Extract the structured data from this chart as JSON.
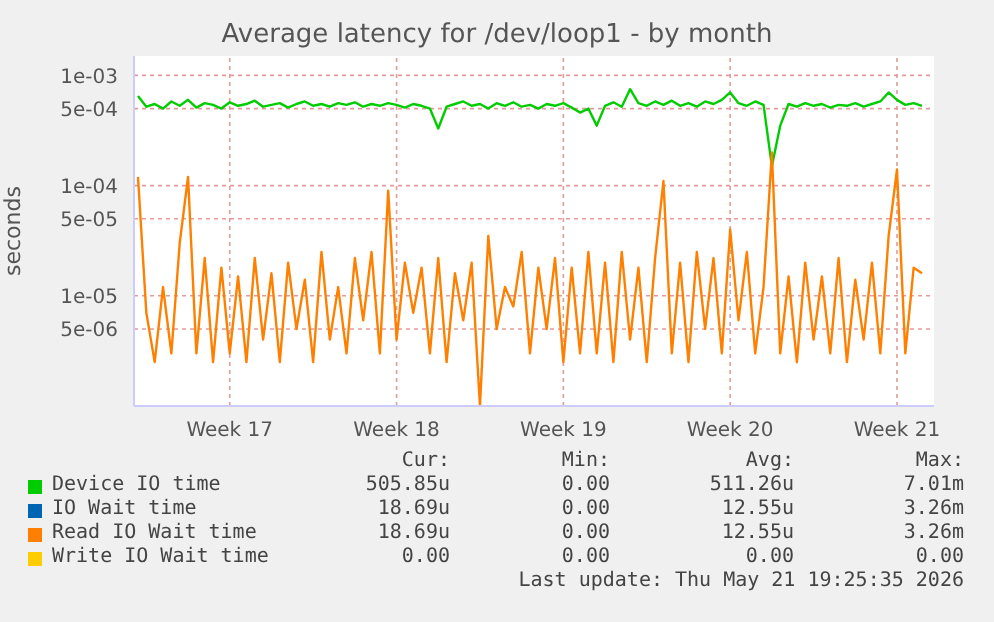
{
  "chart_data": {
    "type": "line",
    "title": "Average latency for /dev/loop1 - by month",
    "ylabel": "seconds",
    "log": "y",
    "grid": true,
    "legend": "bottom",
    "marker": "none",
    "line_style": "solid",
    "categories": [
      null,
      null,
      null,
      null,
      null,
      null,
      null,
      null,
      null,
      null,
      null,
      "Week 17",
      null,
      null,
      null,
      null,
      null,
      null,
      null,
      null,
      null,
      null,
      null,
      null,
      null,
      null,
      null,
      null,
      null,
      null,
      null,
      "Week 18",
      null,
      null,
      null,
      null,
      null,
      null,
      null,
      null,
      null,
      null,
      null,
      null,
      null,
      null,
      null,
      null,
      null,
      null,
      null,
      "Week 19",
      null,
      null,
      null,
      null,
      null,
      null,
      null,
      null,
      null,
      null,
      null,
      null,
      null,
      null,
      null,
      null,
      null,
      null,
      null,
      "Week 20",
      null,
      null,
      null,
      null,
      null,
      null,
      null,
      null,
      null,
      null,
      null,
      null,
      null,
      null,
      null,
      null,
      null,
      null,
      null,
      "Week 21",
      null,
      null,
      null
    ],
    "ylim": [
      1e-06,
      0.0015
    ],
    "yticks": [
      {
        "value": 5e-06,
        "label": "5e-06"
      },
      {
        "value": 1e-05,
        "label": "1e-05"
      },
      {
        "value": 5e-05,
        "label": "5e-05"
      },
      {
        "value": 0.0001,
        "label": "1e-04"
      },
      {
        "value": 0.0005,
        "label": "5e-04"
      },
      {
        "value": 0.001,
        "label": "1e-03"
      }
    ],
    "series": [
      {
        "name": "Device IO time",
        "color": "#00cc00",
        "values": [
          0.00065,
          0.00052,
          0.00055,
          0.0005,
          0.00058,
          0.00053,
          0.0006,
          0.00051,
          0.00056,
          0.00054,
          0.0005,
          0.00057,
          0.00053,
          0.00055,
          0.00059,
          0.00052,
          0.00054,
          0.00056,
          0.00051,
          0.00055,
          0.00058,
          0.00053,
          0.00055,
          0.00052,
          0.00056,
          0.00054,
          0.00057,
          0.00052,
          0.00055,
          0.00053,
          0.00056,
          0.00054,
          0.00051,
          0.00055,
          0.00053,
          0.0005,
          0.00033,
          0.00052,
          0.00055,
          0.00058,
          0.00053,
          0.00055,
          0.0005,
          0.00056,
          0.00053,
          0.00057,
          0.00052,
          0.00054,
          0.0005,
          0.00055,
          0.00053,
          0.00056,
          0.00051,
          0.00046,
          0.0005,
          0.00035,
          0.00053,
          0.00057,
          0.00052,
          0.00075,
          0.00056,
          0.00053,
          0.00058,
          0.00054,
          0.00059,
          0.00053,
          0.00056,
          0.00052,
          0.00058,
          0.00055,
          0.0006,
          0.0007,
          0.00056,
          0.00053,
          0.00058,
          0.00054,
          0.00015,
          0.00035,
          0.00055,
          0.00052,
          0.00056,
          0.00053,
          0.00055,
          0.00051,
          0.00054,
          0.00053,
          0.00056,
          0.00052,
          0.00055,
          0.00058,
          0.0007,
          0.0006,
          0.00054,
          0.00056,
          0.00053
        ]
      },
      {
        "name": "IO Wait time",
        "color": "#0066b3",
        "values": [
          null,
          null,
          null,
          null,
          null,
          null,
          null,
          null,
          null,
          null,
          null,
          null,
          null,
          null,
          null,
          null,
          null,
          null,
          null,
          null,
          null,
          null,
          null,
          null,
          null,
          null,
          null,
          null,
          null,
          null,
          null,
          null,
          null,
          null,
          null,
          null,
          null,
          null,
          null,
          null,
          null,
          null,
          null,
          null,
          null,
          null,
          null,
          null,
          null,
          null,
          null,
          null,
          null,
          null,
          null,
          null,
          null,
          null,
          null,
          null,
          null,
          null,
          null,
          null,
          null,
          null,
          null,
          null,
          null,
          null,
          null,
          null,
          null,
          null,
          null,
          null,
          null,
          null,
          null,
          null,
          null,
          null,
          null,
          null,
          null,
          null,
          null,
          null,
          null,
          null,
          null,
          null,
          null,
          null,
          null
        ]
      },
      {
        "name": "Read IO Wait time",
        "color": "#ff8000",
        "values": [
          0.00012,
          7e-06,
          2.5e-06,
          1.2e-05,
          3e-06,
          3e-05,
          0.00012,
          3e-06,
          2.2e-05,
          2.5e-06,
          1.8e-05,
          3e-06,
          1.5e-05,
          2.5e-06,
          2.2e-05,
          4e-06,
          1.6e-05,
          2.5e-06,
          2e-05,
          5e-06,
          1.4e-05,
          2.5e-06,
          2.5e-05,
          4e-06,
          1.2e-05,
          3e-06,
          2.2e-05,
          6e-06,
          2.5e-05,
          3e-06,
          9e-05,
          4e-06,
          2e-05,
          7e-06,
          1.8e-05,
          3e-06,
          2.2e-05,
          2.5e-06,
          1.6e-05,
          6e-06,
          2e-05,
          1e-06,
          3.5e-05,
          5e-06,
          1.2e-05,
          8e-06,
          2.5e-05,
          3e-06,
          1.8e-05,
          5e-06,
          2.2e-05,
          2.5e-06,
          1.8e-05,
          3e-06,
          2.5e-05,
          3e-06,
          2e-05,
          2.5e-06,
          2.5e-05,
          4e-06,
          1.8e-05,
          2.5e-06,
          2.2e-05,
          0.00011,
          3e-06,
          2e-05,
          2.5e-06,
          2.5e-05,
          5e-06,
          2.2e-05,
          3e-06,
          4e-05,
          6e-06,
          2.5e-05,
          3e-06,
          1.2e-05,
          0.0002,
          3e-06,
          1.5e-05,
          2.5e-06,
          2e-05,
          4e-06,
          1.5e-05,
          3e-06,
          2.2e-05,
          2.5e-06,
          1.4e-05,
          4e-06,
          2e-05,
          3e-06,
          3.5e-05,
          0.00014,
          3e-06,
          1.8e-05,
          1.6e-05
        ]
      },
      {
        "name": "Write IO Wait time",
        "color": "#ffcc00",
        "values": [
          null,
          null,
          null,
          null,
          null,
          null,
          null,
          null,
          null,
          null,
          null,
          null,
          null,
          null,
          null,
          null,
          null,
          null,
          null,
          null,
          null,
          null,
          null,
          null,
          null,
          null,
          null,
          null,
          null,
          null,
          null,
          null,
          null,
          null,
          null,
          null,
          null,
          null,
          null,
          null,
          null,
          null,
          null,
          null,
          null,
          null,
          null,
          null,
          null,
          null,
          null,
          null,
          null,
          null,
          null,
          null,
          null,
          null,
          null,
          null,
          null,
          null,
          null,
          null,
          null,
          null,
          null,
          null,
          null,
          null,
          null,
          null,
          null,
          null,
          null,
          null,
          null,
          null,
          null,
          null,
          null,
          null,
          null,
          null,
          null,
          null,
          null,
          null,
          null,
          null,
          null,
          null,
          null,
          null,
          null
        ]
      }
    ],
    "annotations": [
      "Cur:",
      "Min:",
      "Avg:",
      "Max:",
      "505.85u",
      "0.00",
      "511.26u",
      "7.01m",
      "18.69u",
      "0.00",
      "12.55u",
      "3.26m",
      "18.69u",
      "0.00",
      "12.55u",
      "3.26m",
      "0.00",
      "0.00",
      "0.00",
      "0.00",
      "Last update: Thu May 21 19:25:35 2026"
    ]
  }
}
